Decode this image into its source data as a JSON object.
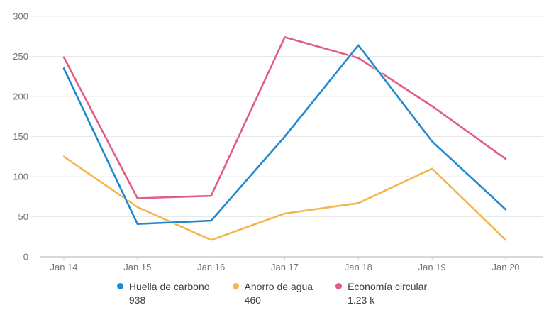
{
  "chart_data": {
    "type": "line",
    "categories": [
      "Jan 14",
      "Jan 15",
      "Jan 16",
      "Jan 17",
      "Jan 18",
      "Jan 19",
      "Jan 20"
    ],
    "series": [
      {
        "name": "Huella de carbono",
        "total": "938",
        "color": "#1e88d2",
        "values": [
          235,
          41,
          45,
          150,
          264,
          144,
          59
        ]
      },
      {
        "name": "Ahorro de agua",
        "total": "460",
        "color": "#f5b54d",
        "values": [
          125,
          62,
          21,
          54,
          67,
          110,
          21
        ]
      },
      {
        "name": "Economía circular",
        "total": "1.23 k",
        "color": "#e25c85",
        "values": [
          249,
          73,
          76,
          274,
          248,
          188,
          122
        ]
      }
    ],
    "title": "",
    "xlabel": "",
    "ylabel": "",
    "ylim": [
      0,
      300
    ],
    "y_ticks": [
      0,
      50,
      100,
      150,
      200,
      250,
      300
    ],
    "grid": "horizontal-only",
    "legend_position": "bottom",
    "style": {
      "grid_color": "#e8e8e8",
      "axis_line_color": "#b0b0b0",
      "tick_mark_color": "#c9c9c9",
      "axis_label_color": "#757575",
      "legend_text_color": "#3f3f3f",
      "background": "#ffffff"
    }
  }
}
